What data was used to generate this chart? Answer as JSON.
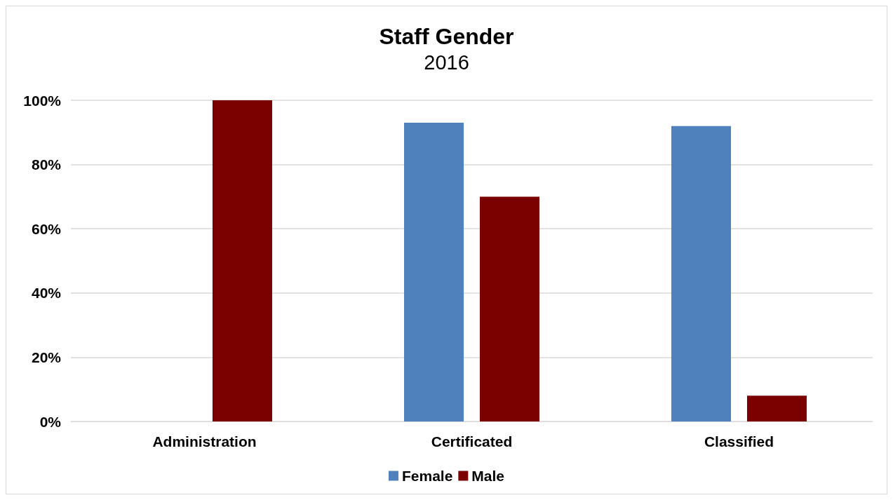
{
  "chart_data": {
    "type": "bar",
    "title": "Staff Gender",
    "subtitle": "2016",
    "categories": [
      "Administration",
      "Certificated",
      "Classified"
    ],
    "series": [
      {
        "name": "Female",
        "color": "#4f81bd",
        "values": [
          0,
          93,
          92
        ]
      },
      {
        "name": "Male",
        "color": "#7b0000",
        "values": [
          100,
          70,
          8
        ]
      }
    ],
    "ylim": [
      0,
      100
    ],
    "yticks": [
      {
        "value": 0,
        "label": "0%"
      },
      {
        "value": 20,
        "label": "20%"
      },
      {
        "value": 40,
        "label": "40%"
      },
      {
        "value": 60,
        "label": "60%"
      },
      {
        "value": 80,
        "label": "80%"
      },
      {
        "value": 100,
        "label": "100%"
      }
    ],
    "grid": "y",
    "legend": "bottom"
  }
}
